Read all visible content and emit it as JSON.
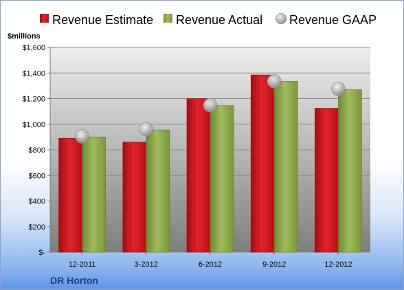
{
  "chart_data": {
    "type": "bar",
    "categories": [
      "12-2011",
      "3-2012",
      "6-2012",
      "9-2012",
      "12-2012"
    ],
    "series": [
      {
        "name": "Revenue Estimate",
        "values": [
          890,
          860,
          1200,
          1385,
          1125
        ],
        "color": "#c8161d",
        "mark": "bar"
      },
      {
        "name": "Revenue Actual",
        "values": [
          900,
          955,
          1145,
          1335,
          1270
        ],
        "color": "#8aa84a",
        "mark": "bar"
      },
      {
        "name": "Revenue GAAP",
        "values": [
          905,
          960,
          1148,
          1335,
          1277
        ],
        "color": "#b8b8b8",
        "mark": "scatter"
      }
    ],
    "ylim": [
      0,
      1600
    ],
    "yticks": [
      0,
      200,
      400,
      600,
      800,
      1000,
      1200,
      1400,
      1600
    ],
    "ytick_labels": [
      "$-",
      "$200",
      "$400",
      "$600",
      "$800",
      "$1,000",
      "$1,200",
      "$1,400",
      "$1,600"
    ],
    "ylabel": "$millions",
    "grid": true,
    "legend": "top"
  },
  "company": "DR Horton"
}
